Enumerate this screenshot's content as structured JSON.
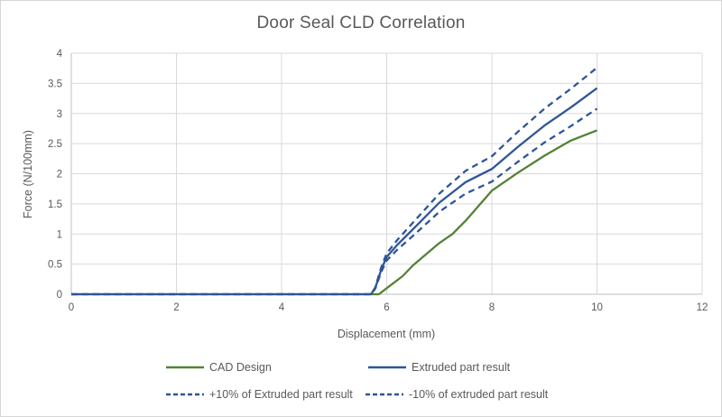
{
  "chart_data": {
    "type": "line",
    "title": "Door Seal CLD Correlation",
    "xlabel": "Displacement (mm)",
    "ylabel": "Force (N/100mm)",
    "xlim": [
      0,
      12
    ],
    "ylim": [
      0,
      4
    ],
    "x_ticks": [
      0,
      2,
      4,
      6,
      8,
      10,
      12
    ],
    "y_ticks": [
      0,
      0.5,
      1,
      1.5,
      2,
      2.5,
      3,
      3.5,
      4
    ],
    "grid": true,
    "legend_position": "bottom",
    "colors": {
      "cad_green": "#548235",
      "extruded_blue": "#2F5597",
      "gridline": "#D9D9D9",
      "axis_line": "#BFBFBF",
      "text": "#595959"
    },
    "series": [
      {
        "name": "CAD Design",
        "color": "#548235",
        "style": "solid",
        "points": [
          [
            0,
            0
          ],
          [
            5.85,
            0
          ],
          [
            6.0,
            0.1
          ],
          [
            6.3,
            0.3
          ],
          [
            6.5,
            0.48
          ],
          [
            7.0,
            0.85
          ],
          [
            7.25,
            1.0
          ],
          [
            7.5,
            1.22
          ],
          [
            8.0,
            1.72
          ],
          [
            8.5,
            2.02
          ],
          [
            9.0,
            2.3
          ],
          [
            9.5,
            2.55
          ],
          [
            10,
            2.72
          ]
        ]
      },
      {
        "name": "Extruded part result",
        "color": "#2F5597",
        "style": "solid",
        "points": [
          [
            0,
            0
          ],
          [
            5.7,
            0
          ],
          [
            5.78,
            0.1
          ],
          [
            5.9,
            0.42
          ],
          [
            6.0,
            0.62
          ],
          [
            6.2,
            0.82
          ],
          [
            6.5,
            1.08
          ],
          [
            7.0,
            1.52
          ],
          [
            7.5,
            1.86
          ],
          [
            8.0,
            2.08
          ],
          [
            8.5,
            2.45
          ],
          [
            9.0,
            2.8
          ],
          [
            9.5,
            3.1
          ],
          [
            10,
            3.42
          ]
        ]
      },
      {
        "name": "+10% of Extruded part result",
        "color": "#2F5597",
        "style": "dashed",
        "points": [
          [
            0,
            0
          ],
          [
            5.7,
            0
          ],
          [
            5.78,
            0.11
          ],
          [
            5.9,
            0.46
          ],
          [
            6.0,
            0.68
          ],
          [
            6.2,
            0.9
          ],
          [
            6.5,
            1.19
          ],
          [
            7.0,
            1.67
          ],
          [
            7.5,
            2.05
          ],
          [
            8.0,
            2.29
          ],
          [
            8.5,
            2.7
          ],
          [
            9.0,
            3.08
          ],
          [
            9.5,
            3.41
          ],
          [
            10,
            3.76
          ]
        ]
      },
      {
        "name": "-10% of extruded part result",
        "color": "#2F5597",
        "style": "dashed",
        "points": [
          [
            0,
            0
          ],
          [
            5.7,
            0
          ],
          [
            5.78,
            0.09
          ],
          [
            5.9,
            0.38
          ],
          [
            6.0,
            0.56
          ],
          [
            6.2,
            0.74
          ],
          [
            6.5,
            0.97
          ],
          [
            7.0,
            1.37
          ],
          [
            7.5,
            1.67
          ],
          [
            8.0,
            1.87
          ],
          [
            8.5,
            2.2
          ],
          [
            9.0,
            2.52
          ],
          [
            9.5,
            2.79
          ],
          [
            10,
            3.08
          ]
        ]
      }
    ]
  }
}
